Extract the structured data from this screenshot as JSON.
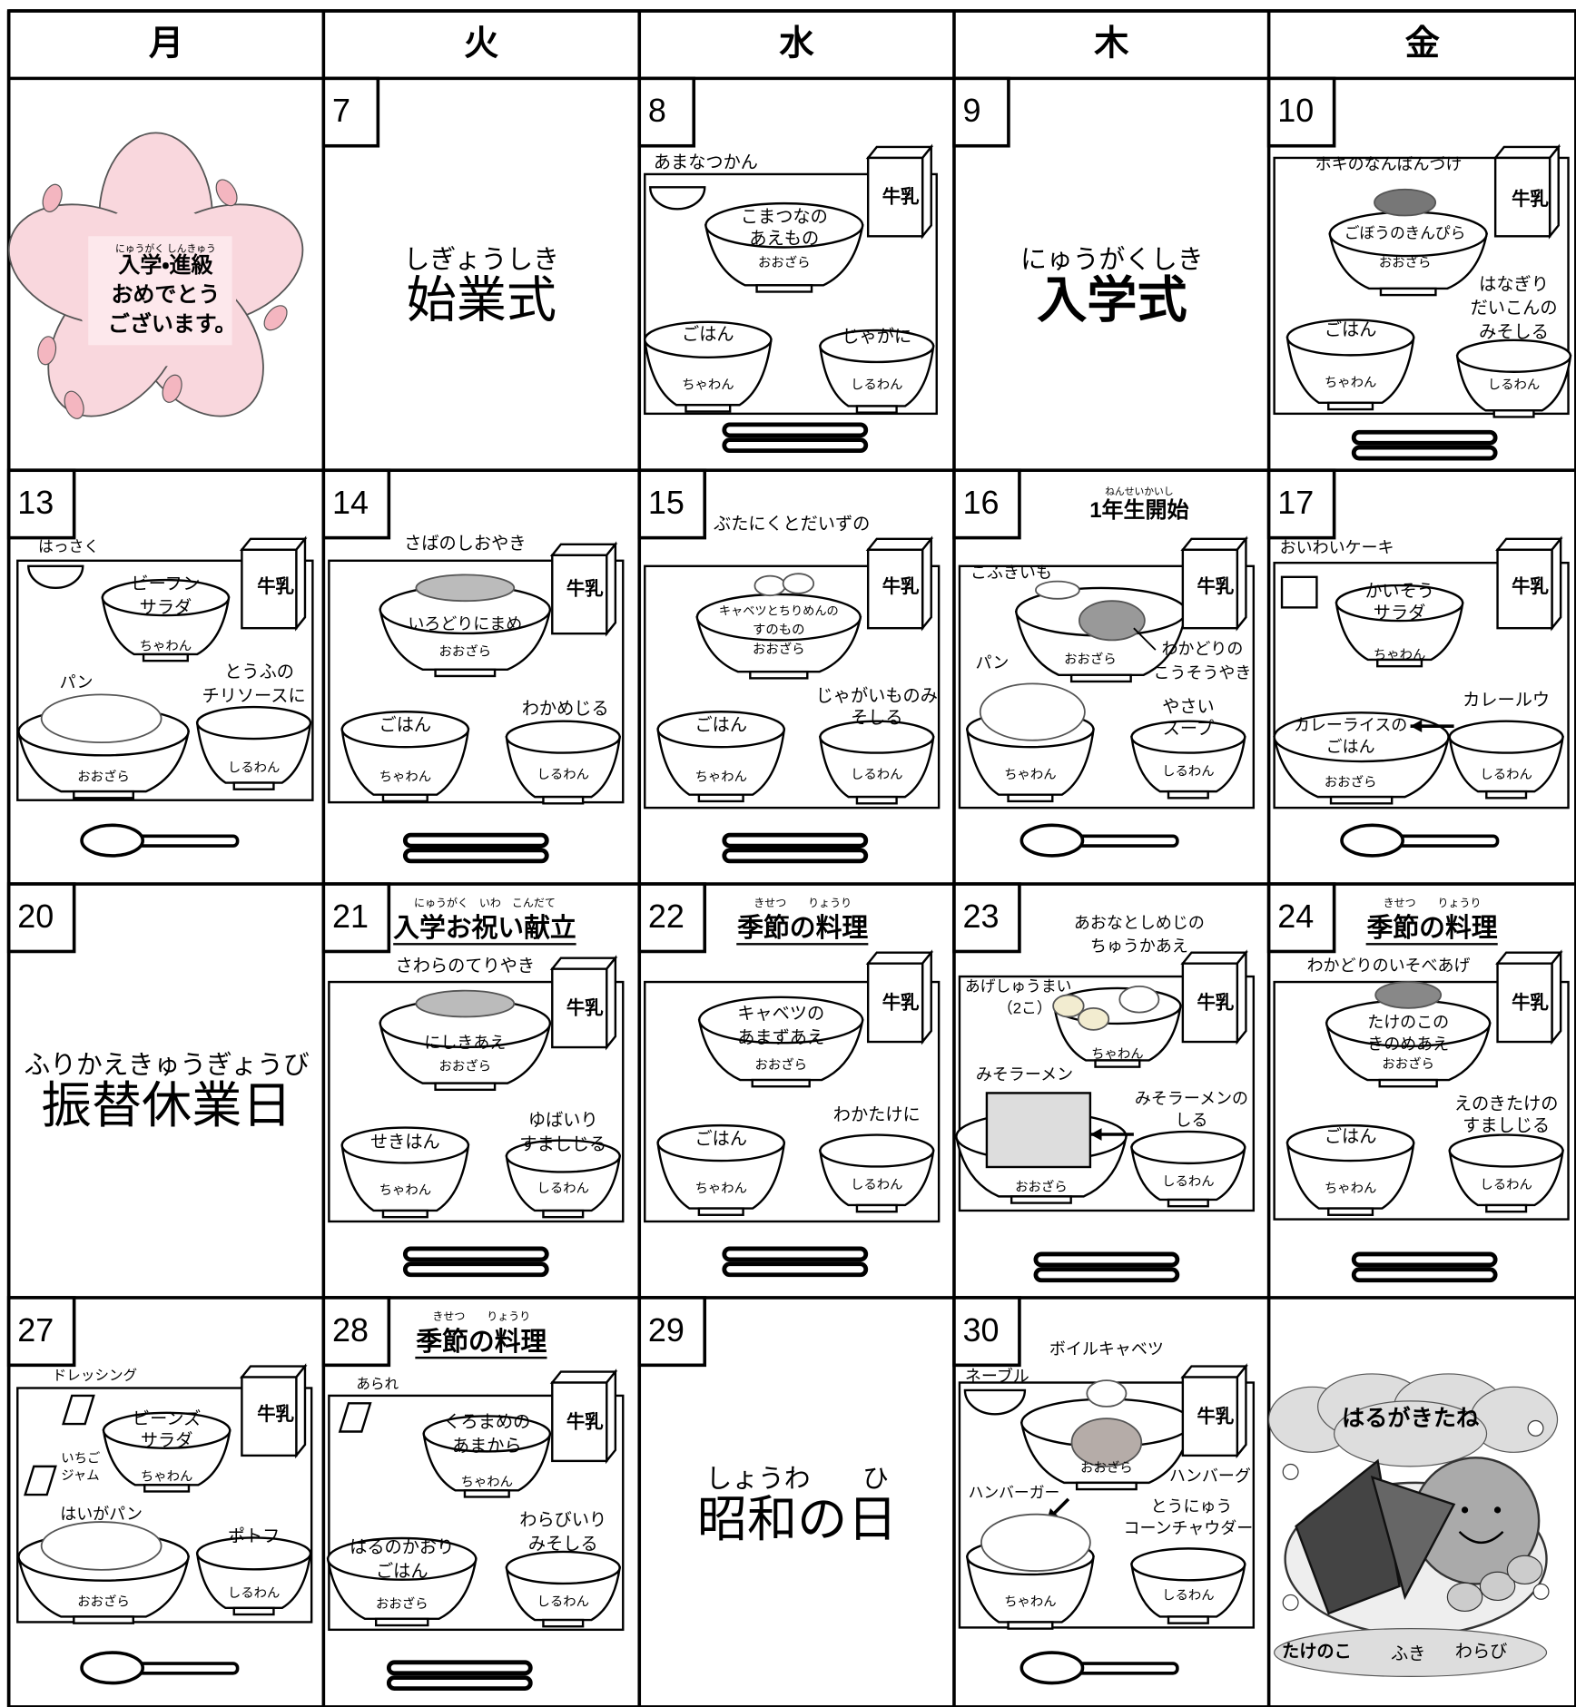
{
  "weekdays": [
    "月",
    "火",
    "水",
    "木",
    "金"
  ],
  "weeks": [
    [
      {
        "texts": [
          "にゅうがく しんきゅう",
          "入学・進級",
          "おめでとう",
          "ございます。"
        ]
      },
      {
        "date": 7,
        "texts": [
          "しぎょうしき",
          "始業式"
        ]
      },
      {
        "date": 8,
        "texts": [
          "あまなつかん",
          "牛乳",
          "こまつなの",
          "あえもの",
          "おおざら",
          "ごはん",
          "ちゃわん",
          "じゃがに",
          "しるわん"
        ]
      },
      {
        "date": 9,
        "texts": [
          "にゅうがくしき",
          "入学式"
        ]
      },
      {
        "date": 10,
        "texts": [
          "ホキのなんばんづけ",
          "牛乳",
          "ごぼうのきんぴら",
          "おおざら",
          "はなぎり",
          "だいこんの",
          "みそしる",
          "ごはん",
          "ちゃわん",
          "しるわん"
        ]
      }
    ],
    [
      {
        "date": 13,
        "texts": [
          "はっさく",
          "ビーフン",
          "サラダ",
          "ちゃわん",
          "牛乳",
          "パン",
          "とうふの",
          "チリソースに",
          "おおざら",
          "しるわん"
        ]
      },
      {
        "date": 14,
        "texts": [
          "さばのしおやき",
          "牛乳",
          "いろどりにまめ",
          "おおざら",
          "ごはん",
          "ちゃわん",
          "わかめじる",
          "しるわん"
        ]
      },
      {
        "date": 15,
        "texts": [
          "ぶたにくとだいずの",
          "牛乳",
          "キャベツとちりめんの",
          "すのもの",
          "おおざら",
          "ごはん",
          "ちゃわん",
          "じゃがいものみ",
          "そしる",
          "しるわん"
        ]
      },
      {
        "date": 16,
        "texts": [
          "ねんせいかいし",
          "1年生開始",
          "こふきいも",
          "牛乳",
          "おおざら",
          "わかどりの",
          "こうそうやき",
          "パン",
          "やさい",
          "スープ",
          "ちゃわん",
          "しるわん"
        ]
      },
      {
        "date": 17,
        "texts": [
          "おいわいケーキ",
          "かいそう",
          "サラダ",
          "ちゃわん",
          "牛乳",
          "カレールウ",
          "カレーライスの",
          "ごはん",
          "おおざら",
          "しるわん"
        ]
      }
    ],
    [
      {
        "date": 20,
        "texts": [
          "ふりかえきゅうぎょうび",
          "振替休業日"
        ]
      },
      {
        "date": 21,
        "texts": [
          "にゅうがく　いわ　こんだて",
          "入学お祝い献立",
          "さわらのてりやき",
          "牛乳",
          "にしきあえ",
          "おおざら",
          "せきはん",
          "ちゃわん",
          "ゆばいり",
          "すましじる",
          "しるわん"
        ]
      },
      {
        "date": 22,
        "texts": [
          "きせつ　　りょうり",
          "季節の料理",
          "牛乳",
          "キャベツの",
          "あまずあえ",
          "おおざら",
          "ごはん",
          "ちゃわん",
          "わかたけに",
          "しるわん"
        ]
      },
      {
        "date": 23,
        "texts": [
          "あおなとしめじの",
          "ちゅうかあえ",
          "あげしゅうまい",
          "（2こ）",
          "牛乳",
          "ちゃわん",
          "みそラーメン",
          "みそラーメンの",
          "しる",
          "おおざら",
          "しるわん"
        ]
      },
      {
        "date": 24,
        "texts": [
          "きせつ　　りょうり",
          "季節の料理",
          "わかどりのいそべあげ",
          "牛乳",
          "たけのこの",
          "きのめあえ",
          "おおざら",
          "えのきたけの",
          "すましじる",
          "ごはん",
          "ちゃわん",
          "しるわん"
        ]
      }
    ],
    [
      {
        "date": 27,
        "texts": [
          "ドレッシング",
          "ビーンズ",
          "サラダ",
          "ちゃわん",
          "牛乳",
          "いちご",
          "ジャム",
          "はいがパン",
          "ポトフ",
          "おおざら",
          "しるわん"
        ]
      },
      {
        "date": 28,
        "texts": [
          "きせつ　　りょうり",
          "季節の料理",
          "あられ",
          "くろまめの",
          "あまから",
          "ちゃわん",
          "牛乳",
          "わらびいり",
          "みそしる",
          "はるのかおり",
          "ごはん",
          "おおざら",
          "しるわん"
        ]
      },
      {
        "date": 29,
        "texts": [
          "しょうわ　　ひ",
          "昭和の日"
        ]
      },
      {
        "date": 30,
        "texts": [
          "ネーブル",
          "ボイルキャベツ",
          "牛乳",
          "おおざら",
          "ハンバーグ",
          "ハンバーガー",
          "とうにゅう",
          "コーンチャウダー",
          "ちゃわん",
          "しるわん"
        ]
      },
      {
        "texts": [
          "はるがきたね",
          "たけのこ",
          "ふき",
          "わらび"
        ]
      }
    ]
  ]
}
